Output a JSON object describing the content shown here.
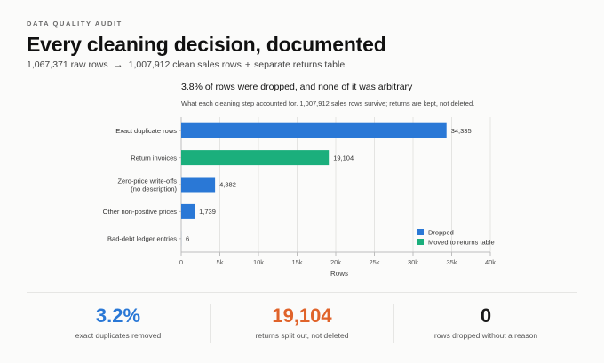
{
  "header": {
    "eyebrow": "DATA QUALITY AUDIT",
    "title": "Every cleaning decision, documented",
    "sub_raw": "1,067,371 raw rows",
    "sub_arrow": "→",
    "sub_clean": "1,007,912 clean sales rows",
    "sub_plus": "+",
    "sub_returns": "separate returns table"
  },
  "chart_data": {
    "type": "bar",
    "orientation": "horizontal",
    "title": "3.8% of rows were dropped, and none of it was arbitrary",
    "subtitle": "What each cleaning step accounted for. 1,007,912 sales rows survive; returns are kept, not deleted.",
    "categories": [
      "Exact duplicate rows",
      "Return invoices",
      "Zero-price write-offs\n(no description)",
      "Other non-positive prices",
      "Bad-debt ledger entries"
    ],
    "values": [
      34335,
      19104,
      4382,
      1739,
      6
    ],
    "value_labels": [
      "34,335",
      "19,104",
      "4,382",
      "1,739",
      "6"
    ],
    "bar_group": [
      "Dropped",
      "Moved to returns table",
      "Dropped",
      "Dropped",
      "Dropped"
    ],
    "legend": [
      {
        "name": "Dropped",
        "color": "#2a78d6"
      },
      {
        "name": "Moved to returns table",
        "color": "#1baf7c"
      }
    ],
    "legend_position": "bottom-right",
    "xlabel": "Rows",
    "xlim": [
      0,
      40000
    ],
    "xticks": [
      0,
      5000,
      10000,
      15000,
      20000,
      25000,
      30000,
      35000,
      40000
    ],
    "xtick_labels": [
      "0",
      "5k",
      "10k",
      "15k",
      "20k",
      "25k",
      "30k",
      "35k",
      "40k"
    ],
    "grid": true
  },
  "stats": [
    {
      "value": "3.2%",
      "label": "exact duplicates removed",
      "color": "#2a78d6"
    },
    {
      "value": "19,104",
      "label": "returns split out, not deleted",
      "color": "#e0632a"
    },
    {
      "value": "0",
      "label": "rows dropped without a reason",
      "color": "#1a1a1a"
    }
  ]
}
